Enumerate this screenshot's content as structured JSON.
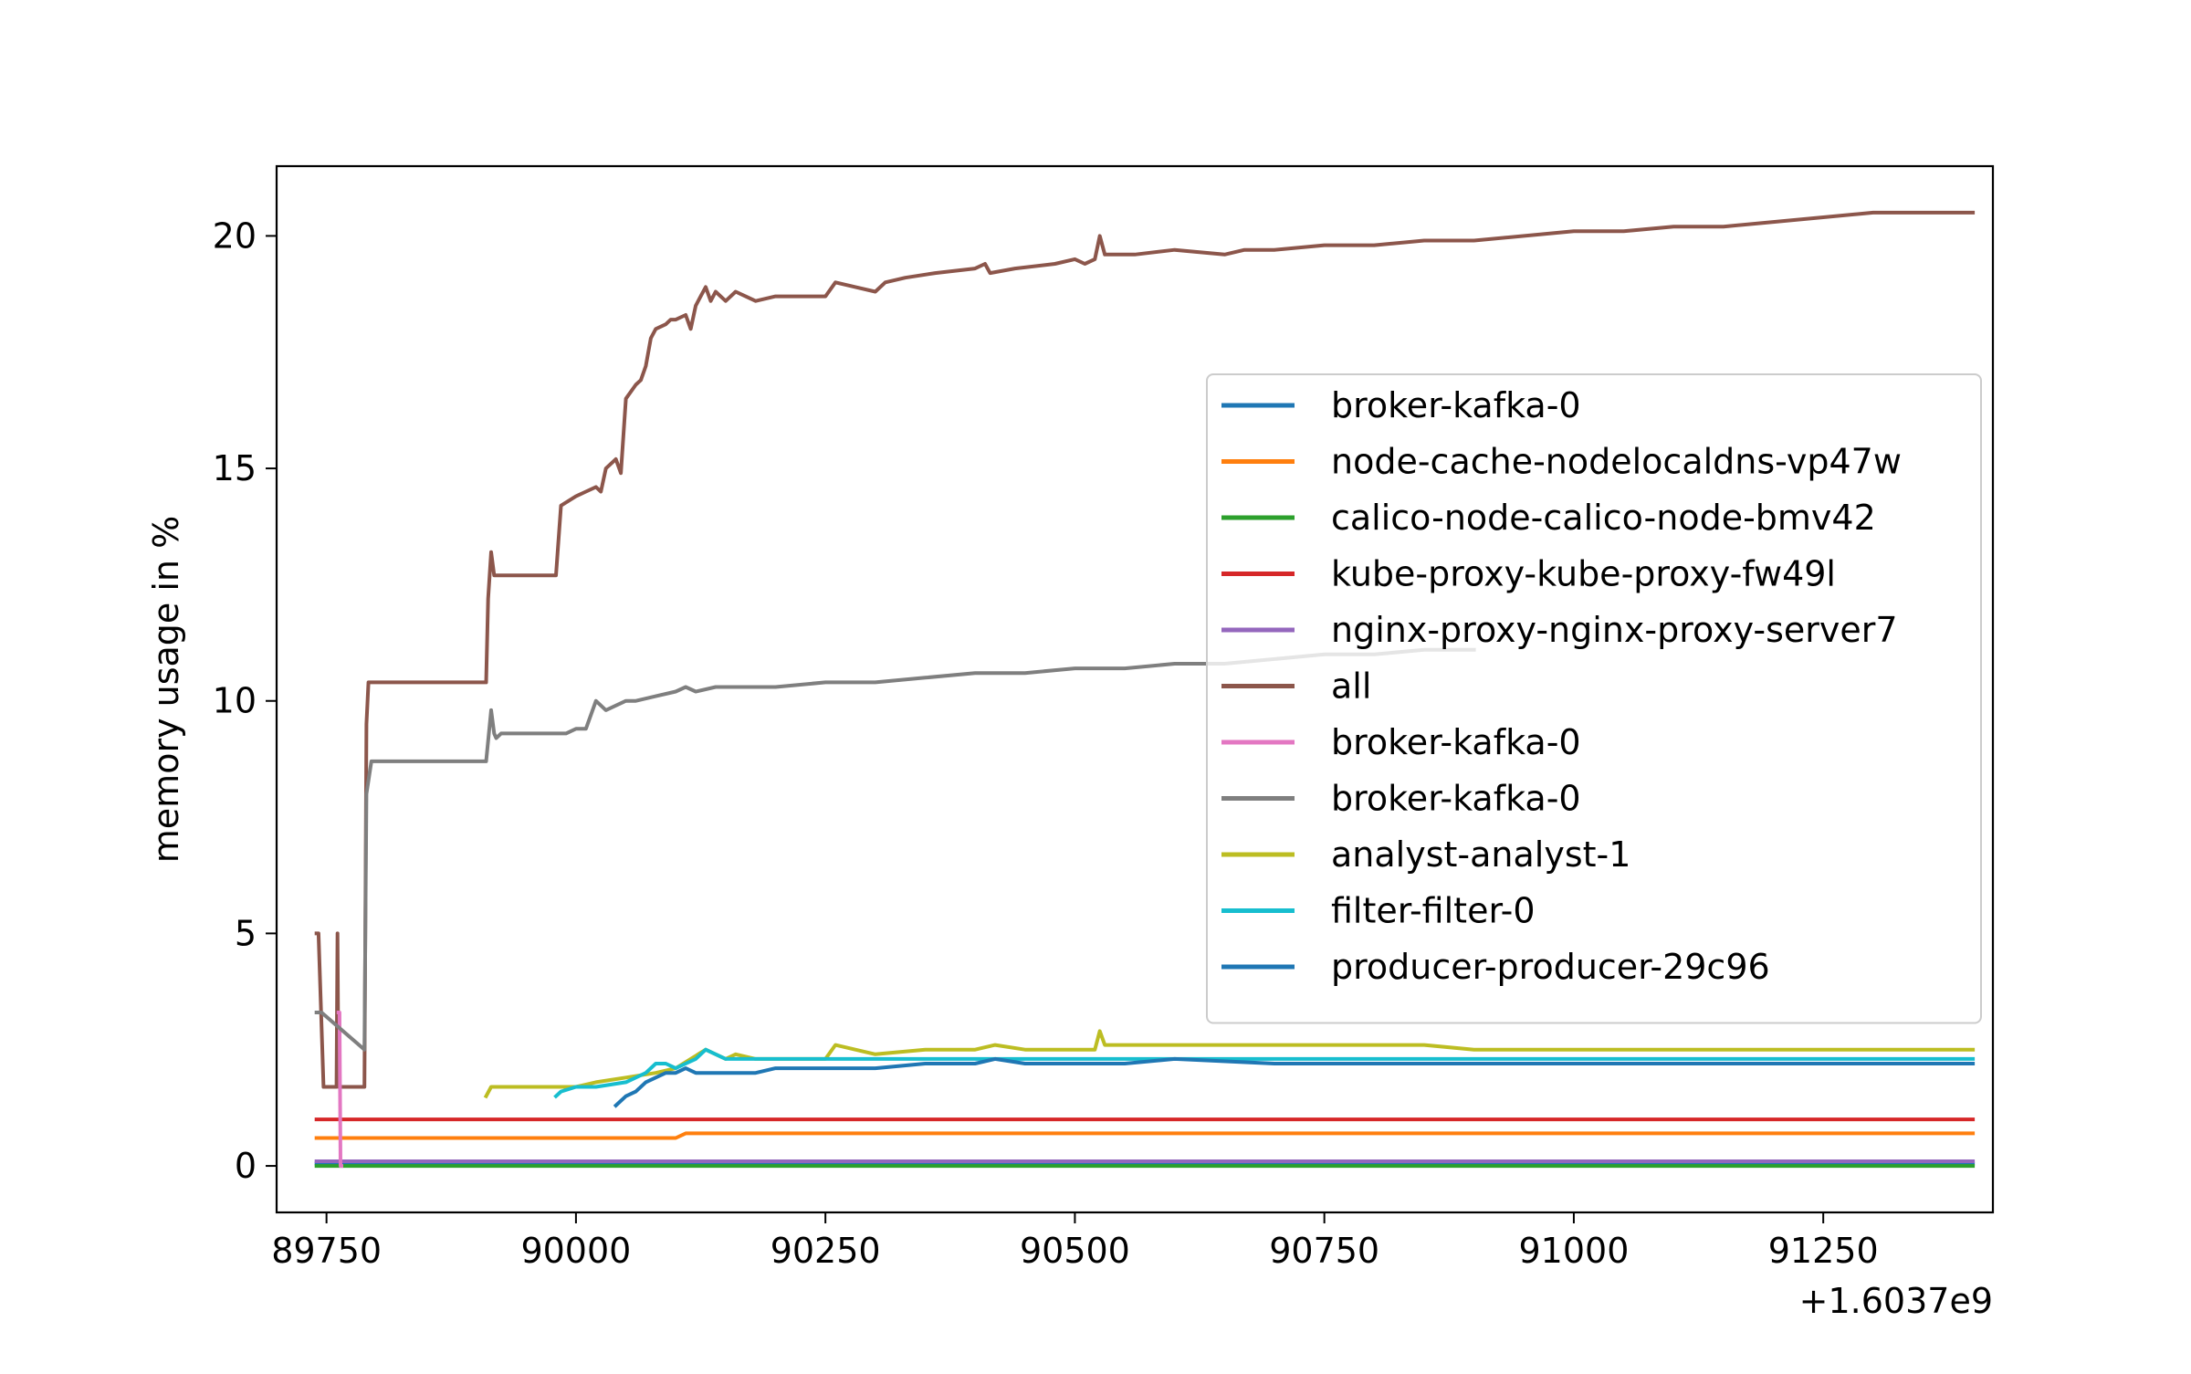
{
  "chart_data": {
    "type": "line",
    "title": "",
    "xlabel": "",
    "ylabel": "memory usage in %",
    "x_offset_label": "+1.6037e9",
    "xlim": [
      89700,
      91420
    ],
    "ylim": [
      -1,
      21.5
    ],
    "x_ticks": [
      89750,
      90000,
      90250,
      90500,
      90750,
      91000,
      91250
    ],
    "x_tick_labels": [
      "89750",
      "90000",
      "90250",
      "90500",
      "90750",
      "91000",
      "91250"
    ],
    "y_ticks": [
      0,
      5,
      10,
      15,
      20
    ],
    "y_tick_labels": [
      "0",
      "5",
      "10",
      "15",
      "20"
    ],
    "grid": false,
    "legend_position": "center-right",
    "series": [
      {
        "name": "broker-kafka-0",
        "color": "#1f77b4",
        "x": [
          89740,
          91400
        ],
        "y": [
          0.05,
          0.05
        ]
      },
      {
        "name": "node-cache-nodelocaldns-vp47w",
        "color": "#ff7f0e",
        "x": [
          89740,
          90100,
          90110,
          91400
        ],
        "y": [
          0.6,
          0.6,
          0.7,
          0.7
        ]
      },
      {
        "name": "calico-node-calico-node-bmv42",
        "color": "#2ca02c",
        "x": [
          89740,
          91400
        ],
        "y": [
          0.0,
          0.0
        ]
      },
      {
        "name": "kube-proxy-kube-proxy-fw49l",
        "color": "#d62728",
        "x": [
          89740,
          91400
        ],
        "y": [
          1.0,
          1.0
        ]
      },
      {
        "name": "nginx-proxy-nginx-proxy-server7",
        "color": "#9467bd",
        "x": [
          89740,
          91400
        ],
        "y": [
          0.1,
          0.1
        ]
      },
      {
        "name": "all",
        "color": "#8c564b",
        "x": [
          89740,
          89742,
          89747,
          89750,
          89760,
          89761,
          89762,
          89765,
          89788,
          89790,
          89792,
          89795,
          89800,
          89880,
          89910,
          89912,
          89915,
          89918,
          89920,
          89925,
          89930,
          89980,
          89985,
          90000,
          90010,
          90020,
          90025,
          90030,
          90040,
          90045,
          90050,
          90060,
          90065,
          90070,
          90075,
          90080,
          90090,
          90095,
          90100,
          90110,
          90115,
          90120,
          90125,
          90130,
          90135,
          90140,
          90150,
          90160,
          90170,
          90180,
          90200,
          90250,
          90260,
          90280,
          90300,
          90310,
          90330,
          90360,
          90400,
          90410,
          90415,
          90440,
          90480,
          90500,
          90510,
          90520,
          90525,
          90530,
          90560,
          90600,
          90650,
          90670,
          90700,
          90750,
          90800,
          90850,
          90900,
          91000,
          91050,
          91100,
          91150,
          91200,
          91250,
          91300,
          91400
        ],
        "y": [
          5.0,
          5.0,
          1.7,
          1.7,
          1.7,
          5.0,
          1.7,
          1.7,
          1.7,
          9.5,
          10.4,
          10.4,
          10.4,
          10.4,
          10.4,
          12.2,
          13.2,
          12.7,
          12.7,
          12.7,
          12.7,
          12.7,
          14.2,
          14.4,
          14.5,
          14.6,
          14.5,
          15.0,
          15.2,
          14.9,
          16.5,
          16.8,
          16.9,
          17.2,
          17.8,
          18.0,
          18.1,
          18.2,
          18.2,
          18.3,
          18.0,
          18.5,
          18.7,
          18.9,
          18.6,
          18.8,
          18.6,
          18.8,
          18.7,
          18.6,
          18.7,
          18.7,
          19.0,
          18.9,
          18.8,
          19.0,
          19.1,
          19.2,
          19.3,
          19.4,
          19.2,
          19.3,
          19.4,
          19.5,
          19.4,
          19.5,
          20.0,
          19.6,
          19.6,
          19.7,
          19.6,
          19.7,
          19.7,
          19.8,
          19.8,
          19.9,
          19.9,
          20.1,
          20.1,
          20.2,
          20.2,
          20.3,
          20.4,
          20.5,
          20.5
        ]
      },
      {
        "name": "broker-kafka-0",
        "color": "#e377c2",
        "x": [
          89762,
          89763,
          89764,
          89765
        ],
        "y": [
          3.3,
          3.3,
          0.0,
          0.0
        ]
      },
      {
        "name": "broker-kafka-0",
        "color": "#7f7f7f",
        "x": [
          89740,
          89745,
          89788,
          89790,
          89795,
          89800,
          89880,
          89910,
          89915,
          89918,
          89920,
          89925,
          89980,
          89990,
          90000,
          90010,
          90020,
          90030,
          90040,
          90050,
          90060,
          90080,
          90100,
          90110,
          90120,
          90140,
          90160,
          90180,
          90200,
          90250,
          90300,
          90350,
          90400,
          90450,
          90500,
          90550,
          90600,
          90650,
          90700,
          90750,
          90800,
          90850,
          90900
        ],
        "y": [
          3.3,
          3.3,
          2.5,
          8.0,
          8.7,
          8.7,
          8.7,
          8.7,
          9.8,
          9.3,
          9.2,
          9.3,
          9.3,
          9.3,
          9.4,
          9.4,
          10.0,
          9.8,
          9.9,
          10.0,
          10.0,
          10.1,
          10.2,
          10.3,
          10.2,
          10.3,
          10.3,
          10.3,
          10.3,
          10.4,
          10.4,
          10.5,
          10.6,
          10.6,
          10.7,
          10.7,
          10.8,
          10.8,
          10.9,
          11.0,
          11.0,
          11.1,
          11.1
        ]
      },
      {
        "name": "analyst-analyst-1",
        "color": "#bcbd22",
        "x": [
          89910,
          89915,
          89940,
          89980,
          90000,
          90020,
          90050,
          90080,
          90100,
          90130,
          90150,
          90160,
          90180,
          90200,
          90250,
          90260,
          90300,
          90350,
          90400,
          90420,
          90450,
          90500,
          90520,
          90525,
          90530,
          90560,
          90600,
          90700,
          90800,
          90850,
          90900,
          91000,
          91200,
          91400
        ],
        "y": [
          1.5,
          1.7,
          1.7,
          1.7,
          1.7,
          1.8,
          1.9,
          2.0,
          2.1,
          2.5,
          2.3,
          2.4,
          2.3,
          2.3,
          2.3,
          2.6,
          2.4,
          2.5,
          2.5,
          2.6,
          2.5,
          2.5,
          2.5,
          2.9,
          2.6,
          2.6,
          2.6,
          2.6,
          2.6,
          2.6,
          2.5,
          2.5,
          2.5,
          2.5
        ]
      },
      {
        "name": "filter-filter-0",
        "color": "#17becf",
        "x": [
          89980,
          89985,
          90000,
          90020,
          90050,
          90060,
          90070,
          90080,
          90090,
          90100,
          90110,
          90120,
          90130,
          90140,
          90150,
          90160,
          90180,
          90200,
          90250,
          90300,
          90400,
          90500,
          90600,
          90700,
          90800,
          91000,
          91100,
          91200,
          91400
        ],
        "y": [
          1.5,
          1.6,
          1.7,
          1.7,
          1.8,
          1.9,
          2.0,
          2.2,
          2.2,
          2.1,
          2.2,
          2.3,
          2.5,
          2.4,
          2.3,
          2.3,
          2.3,
          2.3,
          2.3,
          2.3,
          2.3,
          2.3,
          2.3,
          2.3,
          2.3,
          2.3,
          2.3,
          2.3,
          2.3
        ]
      },
      {
        "name": "producer-producer-29c96",
        "color": "#1f77b4",
        "x": [
          90040,
          90050,
          90060,
          90070,
          90080,
          90090,
          90100,
          90110,
          90120,
          90150,
          90180,
          90200,
          90250,
          90300,
          90350,
          90400,
          90420,
          90450,
          90500,
          90550,
          90600,
          90700,
          90800,
          90900,
          91000,
          91200,
          91400
        ],
        "y": [
          1.3,
          1.5,
          1.6,
          1.8,
          1.9,
          2.0,
          2.0,
          2.1,
          2.0,
          2.0,
          2.0,
          2.1,
          2.1,
          2.1,
          2.2,
          2.2,
          2.3,
          2.2,
          2.2,
          2.2,
          2.3,
          2.2,
          2.2,
          2.2,
          2.2,
          2.2,
          2.2
        ]
      }
    ]
  }
}
